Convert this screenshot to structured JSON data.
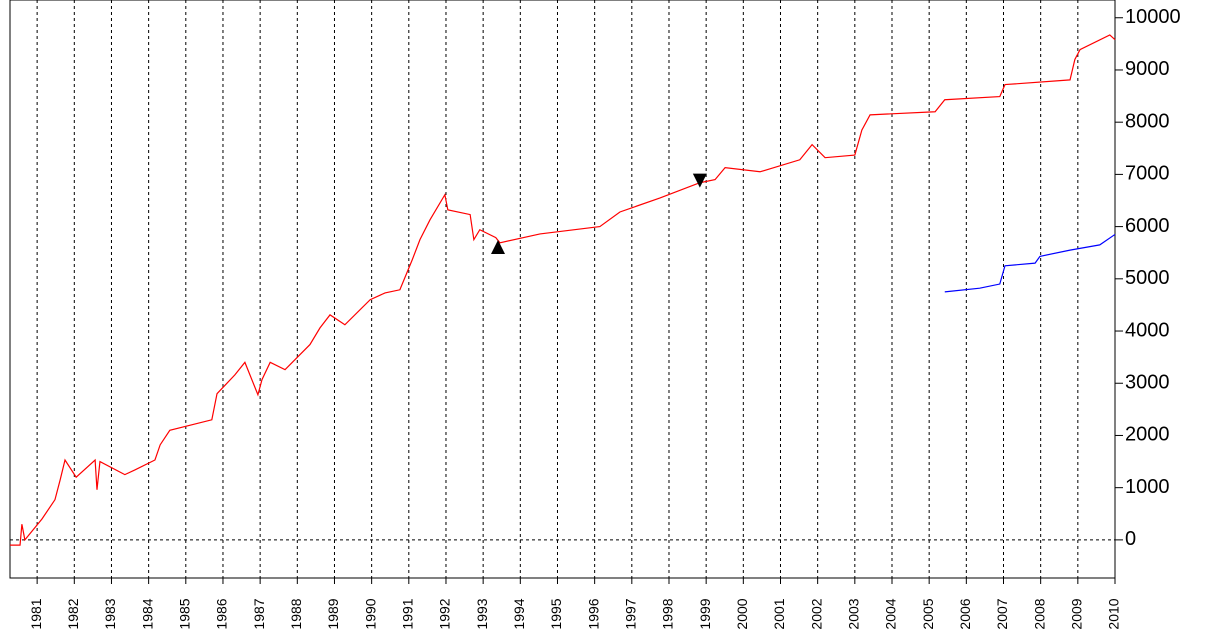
{
  "chart_data": {
    "type": "line",
    "xlim": [
      1980.27,
      2010
    ],
    "ylim": [
      -730,
      10340
    ],
    "xticks": [
      1981,
      1982,
      1983,
      1984,
      1985,
      1986,
      1987,
      1988,
      1989,
      1990,
      1991,
      1992,
      1993,
      1994,
      1995,
      1996,
      1997,
      1998,
      1999,
      2000,
      2001,
      2002,
      2003,
      2004,
      2005,
      2006,
      2007,
      2008,
      2009,
      2010
    ],
    "yticks": [
      0,
      1000,
      2000,
      3000,
      4000,
      5000,
      6000,
      7000,
      8000,
      9000,
      10000
    ],
    "grid": true,
    "series": [
      {
        "color": "#ff0000",
        "x": [
          1980.27,
          1980.54,
          1980.59,
          1980.67,
          1981.13,
          1981.48,
          1981.62,
          1981.75,
          1982.05,
          1982.56,
          1982.61,
          1982.69,
          1983.36,
          1983.63,
          1984.17,
          1984.31,
          1984.57,
          1985.7,
          1985.84,
          1986.32,
          1986.59,
          1986.94,
          1987.05,
          1987.27,
          1987.67,
          1988.34,
          1988.61,
          1988.88,
          1989.28,
          1989.96,
          1990.36,
          1990.76,
          1991.09,
          1991.3,
          1991.57,
          1991.97,
          1992.05,
          1992.65,
          1992.75,
          1992.91,
          1993.34,
          1993.45,
          1994.53,
          1996.14,
          1996.68,
          1997.76,
          1998.83,
          1999.24,
          1999.51,
          2000.45,
          2001.52,
          2001.85,
          2002.2,
          2003.0,
          2003.19,
          2003.41,
          2005.16,
          2005.42,
          2006.9,
          2007.04,
          2008.79,
          2008.92,
          2009.06,
          2009.86,
          2010.0
        ],
        "values": [
          -100,
          -100,
          300,
          0,
          400,
          770,
          1150,
          1530,
          1200,
          1530,
          960,
          1500,
          1250,
          1340,
          1530,
          1820,
          2100,
          2300,
          2800,
          3160,
          3400,
          2780,
          3070,
          3400,
          3260,
          3740,
          4060,
          4310,
          4120,
          4600,
          4730,
          4790,
          5360,
          5750,
          6130,
          6610,
          6320,
          6230,
          5750,
          5940,
          5790,
          5690,
          5860,
          6000,
          6280,
          6550,
          6840,
          6900,
          7130,
          7050,
          7280,
          7570,
          7320,
          7370,
          7850,
          8140,
          8200,
          8430,
          8490,
          8720,
          8810,
          9200,
          9390,
          9670,
          9580
        ]
      },
      {
        "color": "#0000ff",
        "x": [
          2005.42,
          2006.36,
          2006.9,
          2007.04,
          2007.85,
          2007.98,
          2008.79,
          2009.59,
          2010.0
        ],
        "values": [
          4750,
          4820,
          4900,
          5250,
          5300,
          5430,
          5550,
          5650,
          5850
        ]
      }
    ],
    "markers": [
      {
        "x": 1993.4,
        "y": 5610,
        "shape": "up"
      },
      {
        "x": 1998.83,
        "y": 6880,
        "shape": "down"
      }
    ]
  }
}
